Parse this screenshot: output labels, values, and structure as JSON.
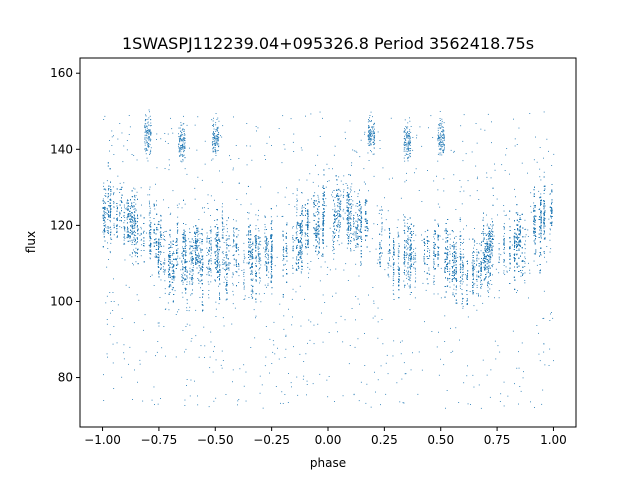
{
  "chart_data": {
    "type": "scatter",
    "title": "1SWASPJ112239.04+095326.8 Period 3562418.75s",
    "xlabel": "phase",
    "ylabel": "flux",
    "xlim": [
      -1.1,
      1.1
    ],
    "ylim": [
      67,
      164
    ],
    "xticks": [
      -1.0,
      -0.75,
      -0.5,
      -0.25,
      0.0,
      0.25,
      0.5,
      0.75,
      1.0
    ],
    "xtick_labels": [
      "−1.00",
      "−0.75",
      "−0.50",
      "−0.25",
      "0.00",
      "0.25",
      "0.50",
      "0.75",
      "1.00"
    ],
    "yticks": [
      80,
      100,
      120,
      140,
      160
    ],
    "ytick_labels": [
      "80",
      "100",
      "120",
      "140",
      "160"
    ],
    "grid": false,
    "legend": "none",
    "marker_color": "#1f77b4",
    "series": [
      {
        "phase_range": [
          -1.0,
          1.0
        ],
        "baseline_curve": {
          "phase": [
            -1.0,
            -0.9,
            -0.8,
            -0.7,
            -0.6,
            -0.5,
            -0.4,
            -0.3,
            -0.2,
            -0.1,
            0.0,
            0.1,
            0.2,
            0.3,
            0.4,
            0.5,
            0.6,
            0.7,
            0.8,
            0.9,
            1.0
          ],
          "flux": [
            124,
            123,
            116,
            111,
            112,
            113,
            110,
            112,
            115,
            118,
            124,
            123,
            116,
            111,
            112,
            113,
            110,
            112,
            115,
            118,
            124
          ]
        },
        "flare_clusters": [
          {
            "phase": -0.8,
            "flux": 144
          },
          {
            "phase": -0.65,
            "flux": 142
          },
          {
            "phase": -0.5,
            "flux": 143
          },
          {
            "phase": 0.19,
            "flux": 144
          },
          {
            "phase": 0.35,
            "flux": 142
          },
          {
            "phase": 0.5,
            "flux": 143
          }
        ],
        "flux_range": [
          72,
          160
        ]
      }
    ]
  }
}
